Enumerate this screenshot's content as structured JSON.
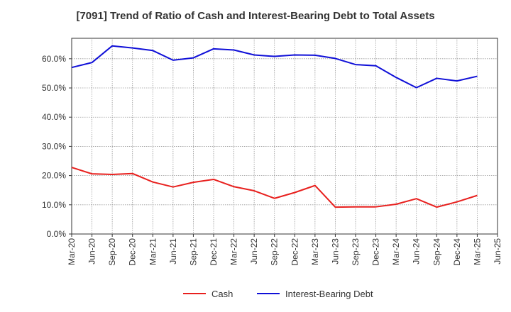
{
  "chart_data": {
    "type": "line",
    "title": "[7091]  Trend of Ratio of Cash and Interest-Bearing Debt to Total Assets",
    "xlabel": "",
    "ylabel": "",
    "ylim": [
      0,
      67
    ],
    "y_ticks": [
      0,
      10,
      20,
      30,
      40,
      50,
      60
    ],
    "y_tick_labels": [
      "0.0%",
      "10.0%",
      "20.0%",
      "30.0%",
      "40.0%",
      "50.0%",
      "60.0%"
    ],
    "x_tick_labels": [
      "Mar-20",
      "Jun-20",
      "Sep-20",
      "Dec-20",
      "Mar-21",
      "Jun-21",
      "Sep-21",
      "Dec-21",
      "Mar-22",
      "Jun-22",
      "Sep-22",
      "Dec-22",
      "Mar-23",
      "Jun-23",
      "Sep-23",
      "Dec-23",
      "Mar-24",
      "Jun-24",
      "Sep-24",
      "Dec-24",
      "Mar-25",
      "Jun-25"
    ],
    "categories": [
      "Mar-20",
      "Jun-20",
      "Sep-20",
      "Dec-20",
      "Mar-21",
      "Jun-21",
      "Sep-21",
      "Dec-21",
      "Mar-22",
      "Jun-22",
      "Sep-22",
      "Dec-22",
      "Mar-23",
      "Jun-23",
      "Sep-23",
      "Dec-23",
      "Mar-24",
      "Jun-24",
      "Sep-24",
      "Dec-24",
      "Mar-25"
    ],
    "grid": true,
    "legend_position": "bottom",
    "series": [
      {
        "name": "Cash",
        "color": "#e8201e",
        "values": [
          22.8,
          20.6,
          20.4,
          20.7,
          17.8,
          16.1,
          17.7,
          18.7,
          16.2,
          14.8,
          12.2,
          14.2,
          16.6,
          9.2,
          9.3,
          9.3,
          10.2,
          12.1,
          9.2,
          11.0,
          13.2
        ]
      },
      {
        "name": "Interest-Bearing Debt",
        "color": "#1010d8",
        "values": [
          57.0,
          58.7,
          64.4,
          63.7,
          62.8,
          59.5,
          60.3,
          63.4,
          63.0,
          61.3,
          60.8,
          61.3,
          61.2,
          60.1,
          58.0,
          57.6,
          53.6,
          50.1,
          53.3,
          52.4,
          54.0
        ]
      }
    ]
  }
}
